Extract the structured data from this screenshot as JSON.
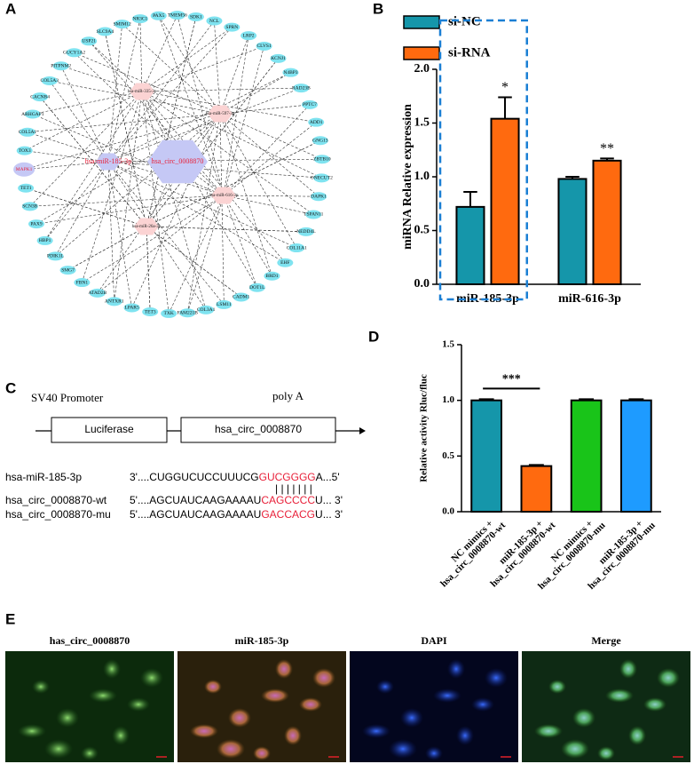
{
  "panels": [
    "A",
    "B",
    "C",
    "D",
    "E"
  ],
  "network": {
    "center": "hsa_circ_0008870",
    "mirnas": [
      "hsa-miR-185-3p",
      "hsa-miR-335-3p",
      "hsa-miR-597-3p",
      "hsa-miR-616-3p",
      "hsa-miR-26a-3p"
    ],
    "genes": [
      "NCL",
      "SPRN",
      "LRP2",
      "CLVS1",
      "KCNJ1",
      "N4BP3",
      "RAD23B",
      "PPTC7",
      "ADD1",
      "GNG13",
      "ZBTB10",
      "ONECUT2",
      "DAPK1",
      "TSPAN11",
      "NEDD4L",
      "COL11A1",
      "EHF",
      "BRD1",
      "DOT1L",
      "CADM1",
      "LSM11",
      "COL3A1",
      "FAM221B",
      "TXK",
      "TET3",
      "LPAR5",
      "ANTXR1",
      "ATAD2B",
      "FBN1",
      "SMG7",
      "PDIK1L",
      "HBP1",
      "PAX9",
      "SCN3B",
      "TET1",
      "MAPK1",
      "TOX3",
      "COL5A1",
      "ARHGAP1",
      "CACNB4",
      "COL5A3",
      "PITPNM2",
      "GUCY1A2",
      "USP21",
      "SLC9A4",
      "SMIM12",
      "NR3C1",
      "PAX5",
      "TMEM56",
      "SDK1"
    ]
  },
  "chart_data": [
    {
      "type": "bar",
      "ylabel": "miRNA Relative expression",
      "categories": [
        "miR-185-3p",
        "miR-616-3p"
      ],
      "series": [
        {
          "name": "si-NC",
          "color": "#1596aa",
          "values": [
            0.72,
            0.98
          ],
          "errors": [
            0.14,
            0.02
          ]
        },
        {
          "name": "si-RNA",
          "color": "#ff6a0f",
          "values": [
            1.54,
            1.15
          ],
          "errors": [
            0.2,
            0.02
          ]
        }
      ],
      "ylim": [
        0,
        2
      ],
      "yticks": [
        {
          "value": 0,
          "label": "0.0"
        },
        {
          "value": 0.5,
          "label": "0.5"
        },
        {
          "value": 1,
          "label": "1.0"
        },
        {
          "value": 1.5,
          "label": "1.5"
        },
        {
          "value": 2,
          "label": "2.0"
        }
      ],
      "annotations": [
        "*",
        "**"
      ]
    },
    {
      "type": "bar",
      "ylabel": "Relative activity Rluc/fluc",
      "categories": [
        [
          "NC mimics +",
          "hsa_circ_0008870-wt"
        ],
        [
          "miR-185-3p +",
          "hsa_circ_0008870-wt"
        ],
        [
          "NC mimics +",
          "hsa_circ_0008870-mu"
        ],
        [
          "miR-185-3p +",
          "hsa_circ_0008870-mu"
        ]
      ],
      "values": [
        1.0,
        0.41,
        1.0,
        1.0
      ],
      "errors": [
        0.01,
        0.01,
        0.01,
        0.01
      ],
      "colors": [
        "#1596aa",
        "#ff6a0f",
        "#19c419",
        "#1e9bff"
      ],
      "ylim": [
        0,
        1.5
      ],
      "yticks": [
        {
          "value": 0,
          "label": "0.0"
        },
        {
          "value": 0.5,
          "label": "0.5"
        },
        {
          "value": 1,
          "label": "1.0"
        },
        {
          "value": 1.5,
          "label": "1.5"
        }
      ],
      "annotations": [
        "***"
      ]
    }
  ],
  "construct": {
    "promoter": "SV40 Promoter",
    "polyA": "poly A",
    "box1": "Luciferase",
    "box2": "hsa_circ_0008870"
  },
  "sequences": [
    {
      "name": "hsa-miR-185-3p",
      "prefix": "3'....CUGGUCUCCUUUCG",
      "seed": "GUCGGGG",
      "suffix": "A...5'"
    },
    {
      "name": "hsa_circ_0008870-wt",
      "prefix": "5'....AGCUAUCAAGAAAAU",
      "seed": "CAGCCCC",
      "suffix": "U... 3'"
    },
    {
      "name": "hsa_circ_0008870-mu",
      "prefix": "5'....AGCUAUCAAGAAAAU",
      "seed": "GACCACG",
      "suffix": "U... 3'"
    }
  ],
  "pairing": "| | | | | | |",
  "images": [
    "has_circ_0008870",
    "miR-185-3p",
    "DAPI",
    "Merge"
  ]
}
